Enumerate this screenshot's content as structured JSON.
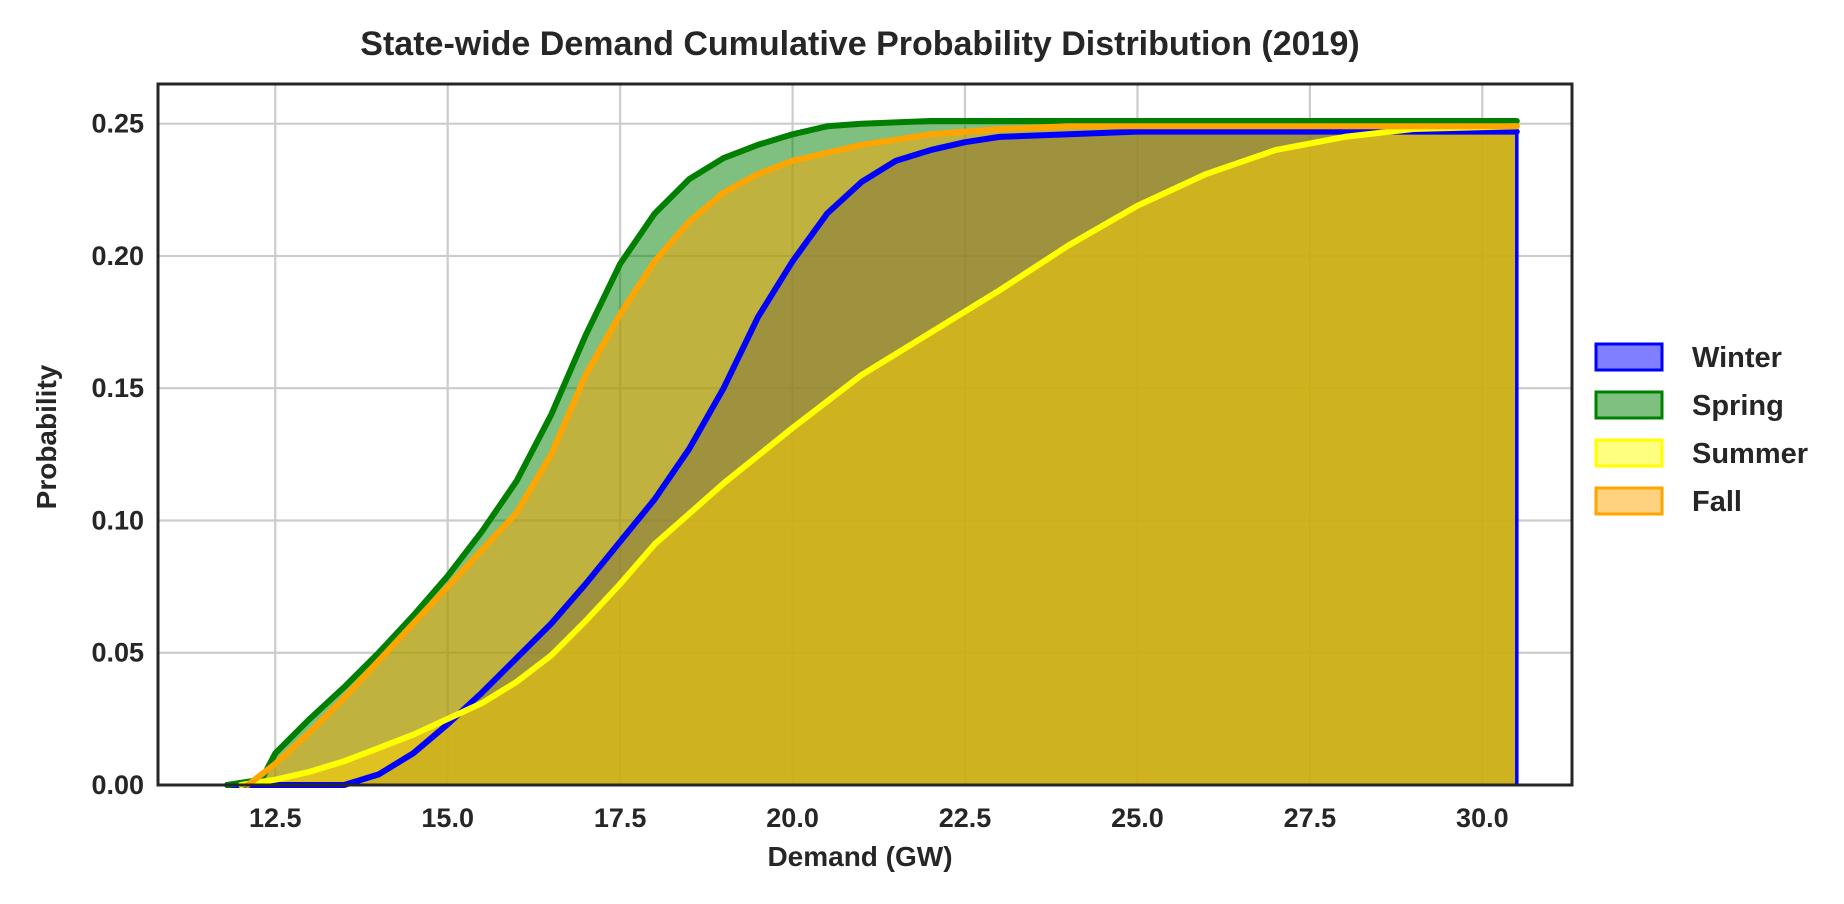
{
  "chart_data": {
    "type": "area",
    "title": "State-wide Demand Cumulative Probability Distribution (2019)",
    "xlabel": "Demand (GW)",
    "ylabel": "Probability",
    "xlim": [
      10.8,
      31.3
    ],
    "ylim": [
      0.0,
      0.265
    ],
    "x_ticks": [
      12.5,
      15.0,
      17.5,
      20.0,
      22.5,
      25.0,
      27.5,
      30.0
    ],
    "x_tick_labels": [
      "12.5",
      "15.0",
      "17.5",
      "20.0",
      "22.5",
      "25.0",
      "27.5",
      "30.0"
    ],
    "y_ticks": [
      0.0,
      0.05,
      0.1,
      0.15,
      0.2,
      0.25
    ],
    "y_tick_labels": [
      "0.00",
      "0.05",
      "0.10",
      "0.15",
      "0.20",
      "0.25"
    ],
    "grid": true,
    "legend_position": "right",
    "series": [
      {
        "name": "Winter",
        "color": "#0000ff",
        "fill": "#0000ff",
        "x": [
          11.8,
          13.0,
          13.5,
          14.0,
          14.5,
          15.0,
          15.5,
          16.0,
          16.5,
          17.0,
          17.5,
          18.0,
          18.5,
          19.0,
          19.5,
          20.0,
          20.5,
          21.0,
          21.5,
          22.0,
          22.5,
          23.0,
          24.0,
          25.0,
          27.0,
          30.5
        ],
        "y": [
          0.0,
          0.0,
          0.0,
          0.004,
          0.012,
          0.023,
          0.035,
          0.048,
          0.061,
          0.076,
          0.092,
          0.108,
          0.127,
          0.15,
          0.177,
          0.198,
          0.216,
          0.228,
          0.236,
          0.24,
          0.243,
          0.245,
          0.246,
          0.247,
          0.247,
          0.247
        ]
      },
      {
        "name": "Spring",
        "color": "#008000",
        "fill": "#008000",
        "x": [
          11.8,
          12.3,
          12.5,
          13.0,
          13.5,
          14.0,
          14.5,
          15.0,
          15.5,
          16.0,
          16.5,
          17.0,
          17.5,
          18.0,
          18.5,
          19.0,
          19.5,
          20.0,
          20.5,
          21.0,
          22.0,
          23.0,
          25.0,
          30.5
        ],
        "y": [
          0.0,
          0.002,
          0.012,
          0.025,
          0.037,
          0.05,
          0.064,
          0.079,
          0.096,
          0.115,
          0.14,
          0.17,
          0.197,
          0.216,
          0.229,
          0.237,
          0.242,
          0.246,
          0.249,
          0.25,
          0.251,
          0.251,
          0.251,
          0.251
        ]
      },
      {
        "name": "Summer",
        "color": "#ffff00",
        "fill": "#ffff00",
        "x": [
          12.0,
          12.5,
          13.0,
          13.5,
          14.0,
          14.5,
          15.0,
          15.5,
          16.0,
          16.5,
          17.0,
          17.5,
          18.0,
          19.0,
          20.0,
          21.0,
          22.0,
          23.0,
          24.0,
          25.0,
          26.0,
          27.0,
          28.0,
          29.0,
          30.5
        ],
        "y": [
          0.0,
          0.002,
          0.005,
          0.009,
          0.014,
          0.019,
          0.025,
          0.031,
          0.039,
          0.049,
          0.062,
          0.076,
          0.091,
          0.114,
          0.135,
          0.155,
          0.171,
          0.187,
          0.204,
          0.219,
          0.231,
          0.24,
          0.245,
          0.248,
          0.249
        ]
      },
      {
        "name": "Fall",
        "color": "#ffa500",
        "fill": "#ffa500",
        "x": [
          12.1,
          12.5,
          13.0,
          13.5,
          14.0,
          14.5,
          15.0,
          15.5,
          16.0,
          16.5,
          17.0,
          17.5,
          18.0,
          18.5,
          19.0,
          19.5,
          20.0,
          20.5,
          21.0,
          21.5,
          22.0,
          23.0,
          24.0,
          26.0,
          30.5
        ],
        "y": [
          0.0,
          0.008,
          0.02,
          0.033,
          0.047,
          0.061,
          0.075,
          0.089,
          0.103,
          0.125,
          0.155,
          0.178,
          0.198,
          0.213,
          0.224,
          0.231,
          0.236,
          0.239,
          0.242,
          0.244,
          0.246,
          0.248,
          0.249,
          0.249,
          0.249
        ]
      }
    ]
  }
}
